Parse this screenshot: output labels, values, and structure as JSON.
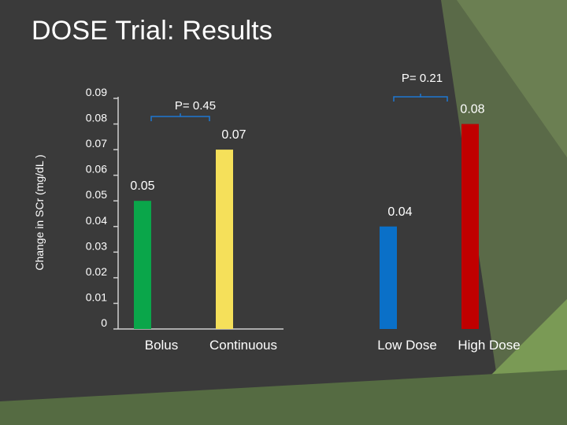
{
  "slide": {
    "title": "DOSE Trial: Results",
    "colors": {
      "background": "#3a3a3a",
      "accent_green": "#7a9a55",
      "accent_olive": "#5a6a48"
    }
  },
  "chart_data": {
    "type": "bar",
    "title": "",
    "xlabel": "",
    "ylabel": "Change in SCr (mg/dL )",
    "ylim": [
      0,
      0.09
    ],
    "yticks": [
      "0",
      "0.01",
      "0.02",
      "0.03",
      "0.04",
      "0.05",
      "0.06",
      "0.07",
      "0.08",
      "0.09"
    ],
    "categories": [
      "Bolus",
      "Continuous",
      "Low Dose",
      "High Dose"
    ],
    "values": [
      0.05,
      0.07,
      0.04,
      0.08
    ],
    "value_labels": [
      "0.05",
      "0.07",
      "0.04",
      "0.08"
    ],
    "colors": [
      "#0aa64a",
      "#f5e05a",
      "#0a70c8",
      "#c00000"
    ],
    "grid": false,
    "comparisons": [
      {
        "label": "P= 0.45",
        "between": [
          "Bolus",
          "Continuous"
        ]
      },
      {
        "label": "P= 0.21",
        "between": [
          "Low Dose",
          "High Dose"
        ]
      }
    ]
  }
}
